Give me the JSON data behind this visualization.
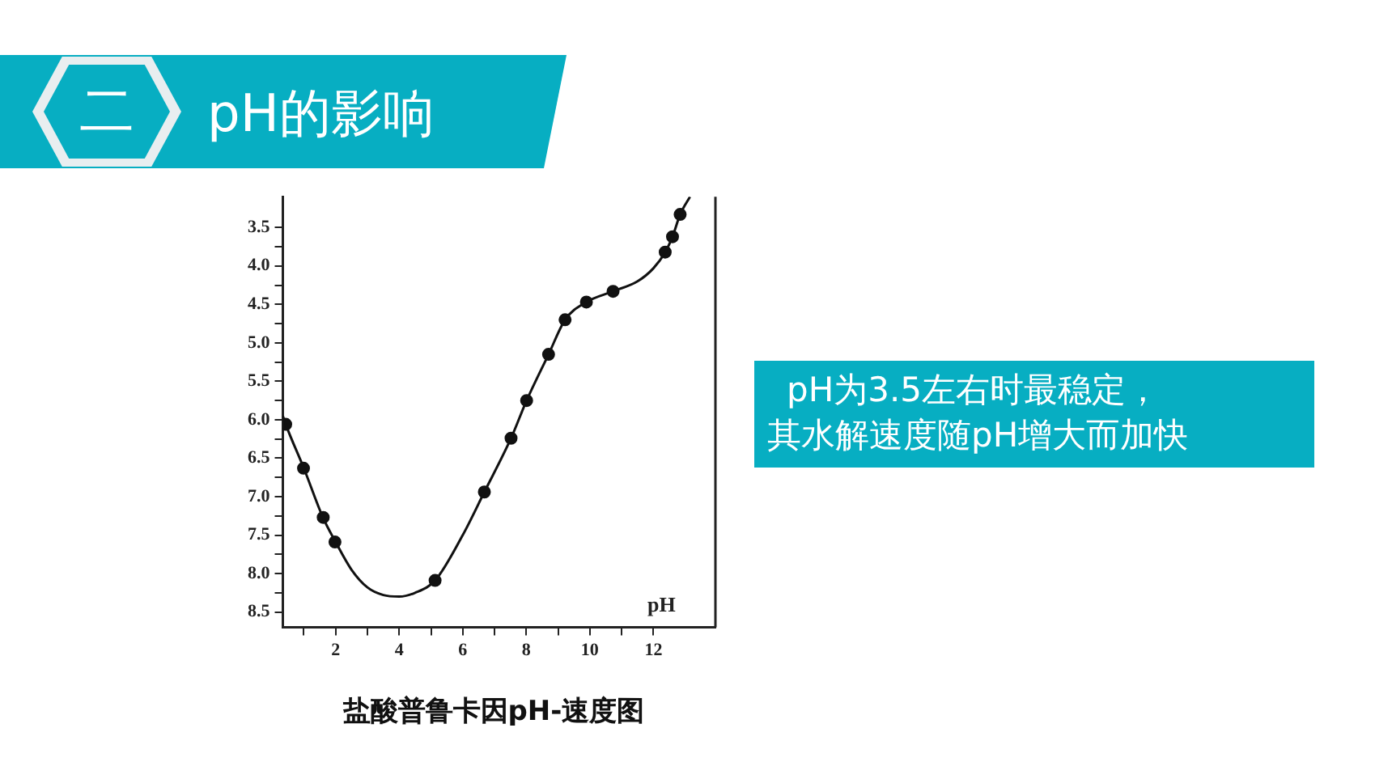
{
  "chart_data": {
    "type": "scatter",
    "title": "pH的影响",
    "xlabel": "pH",
    "annotations": [
      "二",
      "pH为3.5左右时最稳定，",
      "其水解速度随pH增大而加快",
      "盐酸普鲁卡因pH-速度图"
    ],
    "series": [
      {
        "type": "line",
        "color": "#111111",
        "marker": "none",
        "x": [
          0.34,
          0.43,
          1,
          1.6,
          2,
          2.5,
          3,
          3.5,
          4,
          4.5,
          5.13,
          6,
          6.68,
          7.52,
          8.01,
          8.7,
          9.22,
          9.89,
          10.73,
          11.5,
          12,
          12.37,
          12.6,
          12.84,
          13.15
        ],
        "values": [
          5.95,
          6.06,
          6.63,
          7.27,
          7.59,
          7.95,
          8.18,
          8.28,
          8.3,
          8.25,
          8.09,
          7.5,
          6.94,
          6.24,
          5.75,
          5.15,
          4.7,
          4.47,
          4.33,
          4.2,
          4.03,
          3.82,
          3.62,
          3.33,
          3.1
        ]
      },
      {
        "color": "#111111",
        "marker": "circle",
        "x": [
          0.43,
          0.99,
          1.61,
          1.98,
          5.13,
          6.68,
          7.52,
          8.01,
          8.7,
          9.22,
          9.89,
          10.73,
          12.37,
          12.6,
          12.84
        ],
        "values": [
          6.06,
          6.63,
          7.27,
          7.59,
          8.09,
          6.94,
          6.24,
          5.75,
          5.15,
          4.7,
          4.47,
          4.33,
          3.82,
          3.62,
          3.33
        ]
      }
    ],
    "xlim": [
      0.34,
      13.95
    ],
    "xticks": [
      {
        "value": 1,
        "label": null
      },
      {
        "value": 2,
        "label": "2"
      },
      {
        "value": 3,
        "label": null
      },
      {
        "value": 4,
        "label": "4"
      },
      {
        "value": 5,
        "label": null
      },
      {
        "value": 6,
        "label": "6"
      },
      {
        "value": 7,
        "label": null
      },
      {
        "value": 8,
        "label": "8"
      },
      {
        "value": 9,
        "label": null
      },
      {
        "value": 10,
        "label": "10"
      },
      {
        "value": 11,
        "label": null
      },
      {
        "value": 12,
        "label": "12"
      }
    ],
    "ylim": [
      8.7,
      3.1
    ],
    "yticks": [
      3.5,
      {
        "value": 3.75,
        "label": null
      },
      {
        "value": 4,
        "label": "4.0"
      },
      {
        "value": 4.25,
        "label": null
      },
      4.5,
      {
        "value": 4.75,
        "label": null
      },
      {
        "value": 5,
        "label": "5.0"
      },
      {
        "value": 5.25,
        "label": null
      },
      5.5,
      {
        "value": 5.75,
        "label": null
      },
      {
        "value": 6,
        "label": "6.0"
      },
      {
        "value": 6.25,
        "label": null
      },
      6.5,
      {
        "value": 6.75,
        "label": null
      },
      {
        "value": 7,
        "label": "7.0"
      },
      {
        "value": 7.25,
        "label": null
      },
      7.5,
      {
        "value": 7.75,
        "label": null
      },
      {
        "value": 8,
        "label": "8.0"
      },
      {
        "value": 8.25,
        "label": null
      },
      8.5
    ],
    "grid": false,
    "legend": false
  }
}
